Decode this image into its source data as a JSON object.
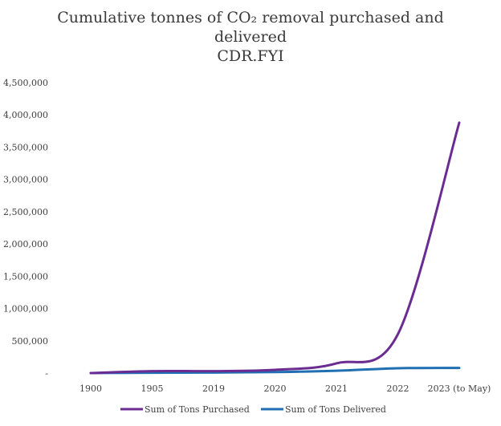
{
  "chart_data": {
    "type": "line",
    "title_lines": [
      "Cumulative tonnes of CO₂ removal purchased and",
      "delivered",
      "CDR.FYI"
    ],
    "categories": [
      "1900",
      "1905",
      "2019",
      "2020",
      "2021",
      "2022",
      "2023 (to May)"
    ],
    "y_ticks": [
      "-",
      "500,000",
      "1,000,000",
      "1,500,000",
      "2,000,000",
      "2,500,000",
      "3,000,000",
      "3,500,000",
      "4,000,000",
      "4,500,000"
    ],
    "ylim": [
      0,
      4500000
    ],
    "grid": false,
    "legend_position": "bottom",
    "series": [
      {
        "name": "Sum of Tons Purchased",
        "color": "#6a2c91",
        "values": [
          0,
          30000,
          30000,
          50000,
          150000,
          600000,
          3880000
        ]
      },
      {
        "name": "Sum of Tons Delivered",
        "color": "#1f6fb2",
        "values": [
          0,
          5000,
          8000,
          15000,
          35000,
          75000,
          80000
        ]
      }
    ]
  }
}
